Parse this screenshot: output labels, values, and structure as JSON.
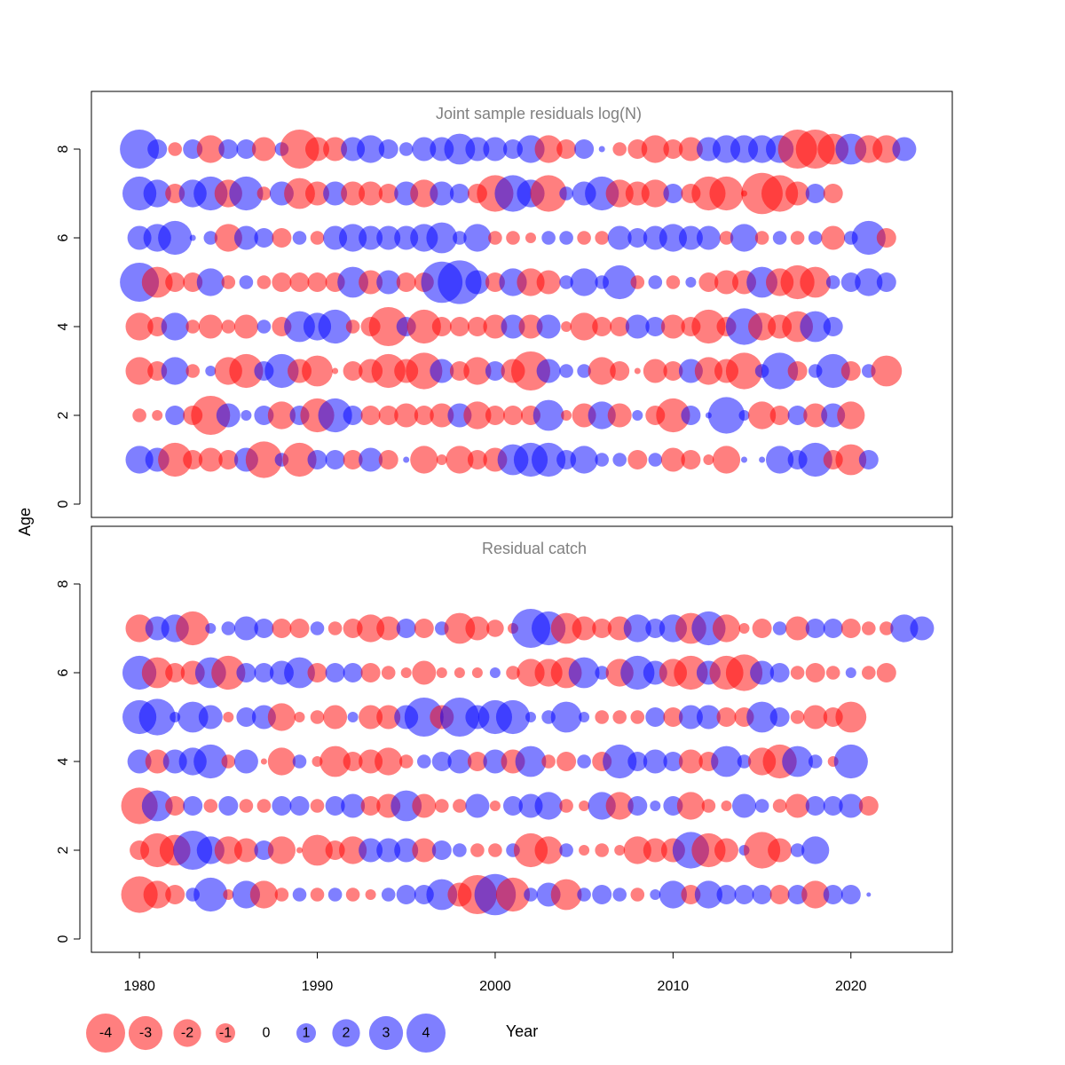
{
  "colors": {
    "negative": "#ff0000",
    "positive": "#0000ff",
    "panel_title": "#808080",
    "axis": "#000000"
  },
  "chart_data": {
    "type": "scatter",
    "subtype": "bubble",
    "ylabel": "Age",
    "xlabel": "Year",
    "xlim": [
      1977.3,
      2025.7
    ],
    "x_ticks": [
      1980,
      1990,
      2000,
      2010,
      2020
    ],
    "y_ticks": [
      0,
      2,
      4,
      6,
      8
    ],
    "ylim": [
      -0.3,
      9.3
    ],
    "years_range": [
      1980,
      2023
    ],
    "grid": false,
    "legend": {
      "position": "bottom-left",
      "values": [
        -4,
        -3,
        -2,
        -1,
        0,
        1,
        2,
        3,
        4
      ],
      "labels": [
        "-4",
        "-3",
        "-2",
        "-1",
        "0",
        "1",
        "2",
        "3",
        "4"
      ]
    },
    "panels": [
      {
        "title": "Joint sample residuals log(N)",
        "alpha": 0.5,
        "ages": [
          1,
          2,
          3,
          4,
          5,
          6,
          7,
          8
        ],
        "residuals": {
          "8": [
            4,
            1,
            -0.5,
            1,
            -2,
            1,
            1,
            -1.5,
            0.5,
            -4,
            -1.5,
            -1.5,
            1.5,
            2,
            1,
            0.5,
            1.5,
            1.5,
            2.5,
            1.5,
            1.5,
            1,
            2,
            -2,
            -1,
            1,
            0.1,
            -0.5,
            -1,
            -2,
            -1,
            -1.5,
            1.5,
            2,
            2,
            2,
            2,
            -4,
            -4,
            -2.5,
            2.5,
            -2,
            -2,
            1.5
          ],
          "7": [
            3,
            2,
            -1,
            2,
            3,
            -2,
            3,
            -0.5,
            1.5,
            -2.5,
            -1.5,
            1.5,
            -1.5,
            -1.5,
            -1,
            1.5,
            -2,
            1.5,
            1,
            -1,
            -3.5,
            3.5,
            2,
            -3.5,
            0.5,
            1.5,
            3,
            -2,
            -1.5,
            -2,
            1,
            -1,
            -3,
            -3,
            -0.1,
            -4.5,
            -3.5,
            -1.5,
            1,
            -1
          ],
          "6": [
            1.5,
            2,
            3,
            0.1,
            0.5,
            -2,
            1.5,
            1,
            -1,
            0.5,
            -0.5,
            1.5,
            2,
            1.5,
            1.5,
            1.5,
            2,
            2.5,
            0.5,
            2,
            -0.5,
            -0.5,
            -0.3,
            0.5,
            0.5,
            -0.5,
            -0.5,
            1.5,
            1,
            1.5,
            2,
            1.5,
            1.5,
            -0.5,
            2,
            -0.5,
            0.5,
            -0.5,
            0.5,
            -1.5,
            0.5,
            3,
            -1
          ],
          "5": [
            4,
            -2.5,
            -1,
            -1,
            2,
            -0.5,
            0.5,
            -0.5,
            -1,
            -1,
            -1,
            -1,
            2.5,
            -1.5,
            1.5,
            -1,
            -1,
            4.5,
            5,
            1.5,
            -1,
            2,
            -2,
            -1.5,
            0.5,
            2,
            0.5,
            3,
            -0.5,
            0.5,
            -0.5,
            0.3,
            -1,
            -1.5,
            -1.5,
            2.5,
            -2,
            -3,
            -2.5,
            0.5,
            1,
            2,
            1
          ],
          "4": [
            -2,
            -1,
            2,
            -0.5,
            -1.5,
            -0.5,
            -1.5,
            0.5,
            -1,
            2.5,
            2,
            3,
            -0.5,
            -1,
            -4,
            1,
            -3,
            -1,
            -1,
            -1,
            -1.5,
            1.5,
            -1.5,
            1.5,
            -0.3,
            -2,
            -1,
            -1,
            1.5,
            1,
            -1.5,
            -1,
            -3,
            -1,
            3.5,
            -2,
            -1.5,
            -2.5,
            2.5,
            1
          ],
          "3": [
            -2,
            -1,
            2,
            -0.5,
            0.3,
            -2,
            -3,
            1,
            3,
            -1.5,
            -2.5,
            -0.1,
            -1,
            -1.5,
            -3,
            -1.5,
            -3.5,
            1.5,
            -1,
            -2,
            1,
            -1.5,
            -4,
            1.5,
            0.5,
            0.5,
            -2,
            -1,
            -0.1,
            -1.5,
            -1,
            1.5,
            -2,
            -1.5,
            -3.5,
            0.5,
            3.5,
            -1,
            0.5,
            3,
            -1,
            0.5,
            -2.5
          ],
          "2": [
            -0.5,
            -0.3,
            1,
            -1,
            -4,
            1.5,
            0.3,
            1,
            -2,
            1,
            -3,
            3,
            1,
            -1,
            -1,
            -1.5,
            -1,
            -1.5,
            1.5,
            -2,
            -1,
            -1,
            -1,
            2.5,
            -0.3,
            -1.5,
            2,
            -1.5,
            0.3,
            -1,
            -3,
            1,
            0.1,
            3.5,
            0.3,
            -2,
            -1,
            1,
            -1.5,
            1.5,
            -2
          ],
          "1": [
            2,
            1.5,
            -3,
            -1,
            -1.5,
            -1,
            1.5,
            -3.5,
            0.5,
            -3,
            1,
            1,
            -1,
            1.5,
            -1,
            0.1,
            -2,
            -0.3,
            -2,
            -1,
            -1.5,
            2.5,
            3,
            3,
            1,
            2,
            0.5,
            0.5,
            -1,
            0.5,
            -1.5,
            -1,
            -0.3,
            -2,
            0.1,
            0.1,
            2,
            1,
            3,
            -1,
            -2.5,
            1
          ]
        }
      },
      {
        "title": "Residual catch",
        "alpha": 0.5,
        "ages": [
          1,
          2,
          3,
          4,
          5,
          6,
          7,
          8
        ],
        "residuals": {
          "7": [
            -2,
            1.5,
            2,
            -3,
            0.3,
            0.5,
            1.5,
            1,
            -1,
            -1,
            0.5,
            -0.5,
            -1,
            -2,
            -1.5,
            1,
            -1,
            0.5,
            -2.5,
            -1.5,
            -0.8,
            -0.3,
            4,
            3,
            -2.5,
            -1.5,
            -1,
            -1.5,
            2,
            1,
            2,
            -2.5,
            3,
            -2,
            -0.3,
            -1,
            0.5,
            -1.5,
            1,
            1,
            -1,
            -0.5,
            -0.5,
            2,
            1.5
          ],
          "6": [
            3,
            -2.5,
            -1,
            -1.5,
            2.5,
            -3,
            1,
            1,
            1.5,
            2.5,
            -1,
            1,
            1,
            -1,
            -0.5,
            -0.3,
            -1.5,
            -0.3,
            -0.3,
            -0.3,
            0.3,
            -0.5,
            -2,
            -2,
            -2.5,
            2.5,
            0.5,
            -2,
            3,
            1.5,
            -2,
            -3,
            1.5,
            -3,
            -3.5,
            1.5,
            1,
            -0.5,
            -1,
            -0.5,
            0.3,
            -0.5,
            -1
          ],
          "5": [
            3,
            3.5,
            0.3,
            2.5,
            1.5,
            -0.3,
            1,
            1.5,
            -2,
            -0.3,
            -0.5,
            -1.5,
            0.3,
            -1.5,
            -1.5,
            1.5,
            4,
            -1.5,
            4,
            1.5,
            3,
            3,
            0.3,
            0.5,
            2.5,
            0.3,
            -0.5,
            -0.5,
            -0.5,
            1,
            -1,
            1.5,
            1.5,
            -1,
            -1,
            2.5,
            1,
            -0.5,
            -1.5,
            -1,
            -2.5
          ],
          "4": [
            1.5,
            -1.5,
            1.5,
            2,
            3,
            -0.5,
            1.5,
            -0.1,
            -2,
            0.5,
            -0.3,
            -2.5,
            -1,
            -1.5,
            -2,
            -0.5,
            0.5,
            1,
            1.5,
            -1,
            1.5,
            -1.5,
            2.5,
            -0.5,
            -1,
            0.5,
            -1,
            3,
            1,
            1.5,
            1,
            -1.5,
            -1,
            2.5,
            0.5,
            -2,
            -3,
            2.5,
            0.5,
            -0.3,
            3
          ],
          "3": [
            -3.5,
            2.5,
            -1,
            1,
            -0.5,
            1,
            -0.5,
            -0.5,
            1,
            1,
            -0.5,
            1,
            1.5,
            -1,
            -1.5,
            2.5,
            -1.5,
            -0.5,
            -0.5,
            1.5,
            -0.3,
            1,
            1.5,
            2,
            -0.5,
            -0.3,
            2,
            -2,
            1,
            0.3,
            1,
            -2,
            -0.5,
            -0.3,
            1.5,
            0.5,
            -0.5,
            -1.5,
            1,
            1,
            1.5,
            -1
          ],
          "2": [
            -1,
            -3,
            -2.5,
            4,
            2,
            -2,
            -1.5,
            1,
            -2,
            -0.1,
            -2.5,
            -1,
            -2,
            1.5,
            1.5,
            1.5,
            -1.5,
            1,
            0.5,
            -0.5,
            -0.5,
            0.5,
            -3,
            -2,
            0.5,
            -0.3,
            -0.5,
            -0.3,
            -2,
            -1.5,
            -1.5,
            3.5,
            -3,
            -1.5,
            0.3,
            -3.5,
            -1.5,
            0.5,
            2
          ],
          "1": [
            -3.5,
            -2,
            -1,
            0.5,
            3,
            -0.3,
            2,
            -2,
            -0.5,
            0.5,
            -0.5,
            0.5,
            -0.5,
            -0.3,
            0.5,
            1,
            1,
            2.5,
            -1.5,
            -4,
            4.5,
            -3,
            0.5,
            1.5,
            -2.5,
            0.5,
            1,
            0.5,
            -0.5,
            0.3,
            2,
            -1,
            2,
            1,
            1,
            1,
            -1,
            1,
            -2,
            1,
            1,
            0.05
          ]
        }
      }
    ]
  }
}
